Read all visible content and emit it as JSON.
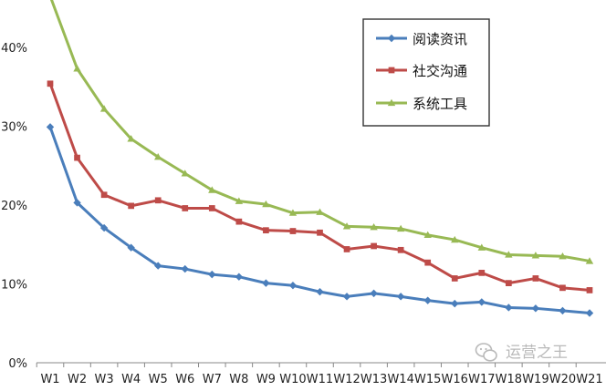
{
  "chart_data": {
    "type": "line",
    "title": "",
    "xlabel": "",
    "ylabel": "",
    "categories": [
      "W1",
      "W2",
      "W3",
      "W4",
      "W5",
      "W6",
      "W7",
      "W8",
      "W9",
      "W10",
      "W11",
      "W12",
      "W13",
      "W14",
      "W15",
      "W16",
      "W17",
      "W18",
      "W19",
      "W20",
      "W21"
    ],
    "y_tick_labels": [
      "0%",
      "10%",
      "20%",
      "30%",
      "40%"
    ],
    "ylim": [
      0,
      46
    ],
    "grid": false,
    "legend_position": "top-right",
    "series": [
      {
        "name": "阅读资讯",
        "color": "#4a7ebb",
        "marker": "diamond",
        "values": [
          29.9,
          20.3,
          17.1,
          14.6,
          12.3,
          11.9,
          11.2,
          10.9,
          10.1,
          9.8,
          9.0,
          8.4,
          8.8,
          8.4,
          7.9,
          7.5,
          7.7,
          7.0,
          6.9,
          6.6,
          6.3
        ]
      },
      {
        "name": "社交沟通",
        "color": "#be4b48",
        "marker": "square",
        "values": [
          35.4,
          26.0,
          21.3,
          19.9,
          20.6,
          19.6,
          19.6,
          17.9,
          16.8,
          16.7,
          16.5,
          14.4,
          14.8,
          14.3,
          12.7,
          10.7,
          11.4,
          10.1,
          10.7,
          9.5,
          9.2
        ]
      },
      {
        "name": "系统工具",
        "color": "#98b954",
        "marker": "triangle",
        "values": [
          46.5,
          37.3,
          32.2,
          28.4,
          26.1,
          24.0,
          21.9,
          20.5,
          20.1,
          19.0,
          19.1,
          17.3,
          17.2,
          17.0,
          16.2,
          15.6,
          14.6,
          13.7,
          13.6,
          13.5,
          12.9
        ]
      }
    ]
  },
  "watermark": {
    "text": "运营之王",
    "icon": "wechat-icon",
    "color": "#b9b9b9"
  }
}
